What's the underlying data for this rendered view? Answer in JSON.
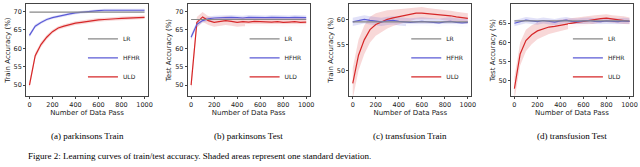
{
  "caption": "Figure 2: Learning curves of train/test accuracy. Shaded areas represent one standard deviation.",
  "chart_data": [
    {
      "type": "line",
      "title": "(a) parkinsons Train",
      "x_label": "Number of Data Pass",
      "y_label": "Train Accuracy (%)",
      "x": [
        0,
        50,
        100,
        150,
        200,
        250,
        300,
        350,
        400,
        450,
        500,
        550,
        600,
        650,
        700,
        750,
        800,
        850,
        900,
        950,
        1000
      ],
      "xlim": [
        -30,
        1030
      ],
      "xticks": [
        0,
        200,
        400,
        600,
        800,
        1000
      ],
      "ylim": [
        47,
        72
      ],
      "yticks": [
        50,
        55,
        60,
        65,
        70
      ],
      "grid": false,
      "legend": "lower right",
      "series": [
        {
          "name": "ULD",
          "color": "#d62728",
          "values": [
            50,
            58,
            61,
            63,
            64.5,
            65.5,
            66,
            66.5,
            66.8,
            67,
            67.3,
            67.5,
            67.7,
            67.8,
            68,
            68,
            68.1,
            68.2,
            68.3,
            68.3,
            68.4
          ],
          "std": [
            1,
            0.8,
            0.7,
            0.6,
            0.5,
            0.5,
            0.5,
            0.5,
            0.5,
            0.5,
            0.5,
            0.5,
            0.5,
            0.5,
            0.5,
            0.5,
            0.5,
            0.5,
            0.5,
            0.5,
            0.5
          ]
        },
        {
          "name": "HFHR",
          "color": "#5b5bd6",
          "values": [
            63.5,
            66,
            67,
            67.8,
            68.3,
            68.7,
            69,
            69.3,
            69.6,
            69.8,
            70,
            70.1,
            70.2,
            70.3,
            70.3,
            70.4,
            70.4,
            70.3,
            70.4,
            70.4,
            70.3
          ],
          "std": [
            0.6,
            0.5,
            0.4,
            0.4,
            0.4,
            0.4,
            0.4,
            0.4,
            0.4,
            0.4,
            0.4,
            0.4,
            0.4,
            0.4,
            0.4,
            0.4,
            0.4,
            0.4,
            0.4,
            0.4,
            0.4
          ]
        },
        {
          "name": "LR",
          "color": "#888888",
          "values": [
            69.8,
            69.8,
            69.8,
            69.8,
            69.8,
            69.8,
            69.8,
            69.8,
            69.8,
            69.8,
            69.8,
            69.8,
            69.8,
            69.8,
            69.8,
            69.8,
            69.8,
            69.8,
            69.8,
            69.8,
            69.8
          ]
        }
      ]
    },
    {
      "type": "line",
      "title": "(b) parkinsons Test",
      "x_label": "Number of Data Pass",
      "y_label": "Test Accuracy (%)",
      "x": [
        0,
        50,
        100,
        150,
        200,
        250,
        300,
        350,
        400,
        450,
        500,
        550,
        600,
        650,
        700,
        750,
        800,
        850,
        900,
        950,
        1000
      ],
      "xlim": [
        -30,
        1030
      ],
      "xticks": [
        0,
        200,
        400,
        600,
        800,
        1000
      ],
      "ylim": [
        47,
        72
      ],
      "yticks": [
        50,
        55,
        60,
        65,
        70
      ],
      "grid": false,
      "legend": "lower right",
      "series": [
        {
          "name": "ULD",
          "color": "#d62728",
          "values": [
            50,
            67,
            68.5,
            67.5,
            67,
            67.2,
            67.5,
            67.3,
            67,
            67.2,
            67.1,
            67.3,
            67.2,
            67,
            67.1,
            67.2,
            67,
            67.1,
            67.2,
            67,
            67.1
          ],
          "std": [
            1.5,
            1.5,
            1.3,
            1.2,
            1.2,
            1.2,
            1.2,
            1.2,
            1.2,
            1.2,
            1.2,
            1.2,
            1.2,
            1.2,
            1.2,
            1.2,
            1.2,
            1.2,
            1.2,
            1.2,
            1.2
          ]
        },
        {
          "name": "HFHR",
          "color": "#5b5bd6",
          "values": [
            63,
            66.5,
            67.5,
            68,
            68.2,
            68.3,
            68.2,
            68.4,
            68.3,
            68.2,
            68.4,
            68.3,
            68.2,
            68.3,
            68.4,
            68.3,
            68.2,
            68.3,
            68.4,
            68.3,
            68.3
          ],
          "std": [
            0.8,
            0.7,
            0.6,
            0.6,
            0.6,
            0.6,
            0.6,
            0.6,
            0.6,
            0.6,
            0.6,
            0.6,
            0.6,
            0.6,
            0.6,
            0.6,
            0.6,
            0.6,
            0.6,
            0.6,
            0.6
          ]
        },
        {
          "name": "LR",
          "color": "#888888",
          "values": [
            67.8,
            67.8,
            67.8,
            67.8,
            67.8,
            67.8,
            67.8,
            67.8,
            67.8,
            67.8,
            67.8,
            67.8,
            67.8,
            67.8,
            67.8,
            67.8,
            67.8,
            67.8,
            67.8,
            67.8,
            67.8
          ]
        }
      ]
    },
    {
      "type": "line",
      "title": "(c) transfusion Train",
      "x_label": "Number of Data Pass",
      "y_label": "Train Accuracy (%)",
      "x": [
        0,
        50,
        100,
        150,
        200,
        250,
        300,
        350,
        400,
        450,
        500,
        550,
        600,
        650,
        700,
        750,
        800,
        850,
        900,
        950,
        1000
      ],
      "xlim": [
        -30,
        1030
      ],
      "xticks": [
        0,
        200,
        400,
        600,
        800,
        1000
      ],
      "ylim": [
        45,
        63
      ],
      "yticks": [
        50,
        55,
        60
      ],
      "grid": false,
      "legend": "lower right",
      "series": [
        {
          "name": "ULD",
          "color": "#d62728",
          "values": [
            47.5,
            53,
            56,
            58,
            59,
            59.5,
            60,
            60.3,
            60.5,
            60.8,
            61,
            61.2,
            61.2,
            61.1,
            61,
            61,
            60.8,
            60.7,
            60.5,
            60.3,
            60.2
          ],
          "std": [
            3,
            3,
            2.8,
            2.5,
            2.2,
            2,
            1.8,
            1.6,
            1.5,
            1.4,
            1.3,
            1.2,
            1.2,
            1.1,
            1.1,
            1,
            1,
            1,
            1,
            1,
            1
          ]
        },
        {
          "name": "HFHR",
          "color": "#5b5bd6",
          "values": [
            59.5,
            59.8,
            60,
            59.8,
            59.6,
            59.5,
            59.7,
            59.8,
            59.6,
            59.5,
            59.4,
            59.5,
            59.6,
            59.5,
            59.4,
            59.3,
            59.5,
            59.6,
            59.4,
            59.3,
            59.4
          ],
          "std": [
            0.8,
            0.8,
            0.8,
            0.8,
            0.8,
            0.8,
            0.8,
            0.8,
            0.8,
            0.8,
            0.8,
            0.8,
            0.8,
            0.8,
            0.8,
            0.8,
            0.8,
            0.8,
            0.8,
            0.8,
            0.8
          ]
        },
        {
          "name": "LR",
          "color": "#888888",
          "values": [
            59.5,
            59.5,
            59.5,
            59.5,
            59.5,
            59.5,
            59.5,
            59.5,
            59.5,
            59.5,
            59.5,
            59.5,
            59.5,
            59.5,
            59.5,
            59.5,
            59.5,
            59.5,
            59.5,
            59.5,
            59.5
          ]
        }
      ]
    },
    {
      "type": "line",
      "title": "(d) transfusion Test",
      "x_label": "Number of Data Pass",
      "y_label": "Test Accuracy (%)",
      "x": [
        0,
        50,
        100,
        150,
        200,
        250,
        300,
        350,
        400,
        450,
        500,
        550,
        600,
        650,
        700,
        750,
        800,
        850,
        900,
        950,
        1000
      ],
      "xlim": [
        -30,
        1030
      ],
      "xticks": [
        0,
        200,
        400,
        600,
        800,
        1000
      ],
      "ylim": [
        46,
        70
      ],
      "yticks": [
        50,
        55,
        60,
        65
      ],
      "grid": false,
      "legend": "lower right",
      "series": [
        {
          "name": "ULD",
          "color": "#d62728",
          "values": [
            48,
            57,
            60.5,
            62,
            63,
            63.5,
            64,
            64.2,
            64.5,
            64.8,
            65,
            65.3,
            65.5,
            65.8,
            66,
            66.2,
            66.3,
            66.1,
            66,
            65.8,
            65.5
          ],
          "std": [
            3,
            3,
            2.8,
            2.5,
            2.2,
            2,
            1.8,
            1.6,
            1.5,
            1.4,
            1.3,
            1.2,
            1.2,
            1.1,
            1.1,
            1,
            1,
            1,
            1,
            1,
            1
          ]
        },
        {
          "name": "HFHR",
          "color": "#5b5bd6",
          "values": [
            65,
            65.5,
            65.8,
            65.6,
            65.4,
            65.7,
            65.5,
            65.3,
            65.6,
            65.8,
            65.5,
            65.4,
            65.6,
            65.7,
            65.5,
            65.4,
            65.6,
            65.5,
            65.4,
            65.6,
            65.5
          ],
          "std": [
            0.8,
            0.8,
            0.8,
            0.8,
            0.8,
            0.8,
            0.8,
            0.8,
            0.8,
            0.8,
            0.8,
            0.8,
            0.8,
            0.8,
            0.8,
            0.8,
            0.8,
            0.8,
            0.8,
            0.8,
            0.8
          ]
        },
        {
          "name": "LR",
          "color": "#888888",
          "values": [
            65.6,
            65.6,
            65.6,
            65.6,
            65.6,
            65.6,
            65.6,
            65.6,
            65.6,
            65.6,
            65.6,
            65.6,
            65.6,
            65.6,
            65.6,
            65.6,
            65.6,
            65.6,
            65.6,
            65.6,
            65.6
          ]
        }
      ]
    }
  ]
}
